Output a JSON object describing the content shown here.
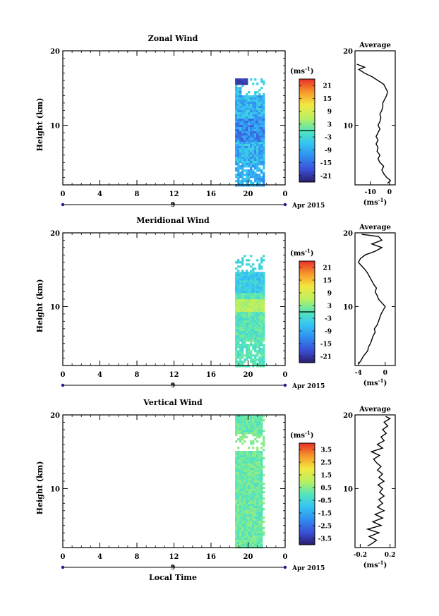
{
  "figure": {
    "x_axis_label": "Local Time",
    "colorbar_unit": "(ms",
    "colorbar_unit_exp": "-1",
    "colorbar_unit_close": ")"
  },
  "chart_data": [
    {
      "type": "heatmap",
      "title": "Zonal Wind",
      "ylabel": "Height (km)",
      "xlim": [
        0,
        24
      ],
      "ylim": [
        2,
        20
      ],
      "x_ticks": [
        "0",
        "4",
        "8",
        "12",
        "16",
        "20",
        "0"
      ],
      "y_ticks": [
        "10",
        "20"
      ],
      "date_axis": {
        "day": "9",
        "month_year": "Apr 2015"
      },
      "data_extent": {
        "x": [
          18.6,
          21.8
        ],
        "y": [
          2,
          16.3
        ]
      },
      "colorbar": {
        "ticks": [
          "21",
          "15",
          "9",
          "3",
          "-3",
          "-9",
          "-15",
          "-21"
        ],
        "range": [
          -24,
          24
        ]
      },
      "field_description_values": {
        "dominant": -8,
        "upper_patch": -22
      },
      "average_profile": {
        "title": "Average",
        "xlabel": "(ms",
        "xlabel_exp": "-1",
        "xlabel_close": ")",
        "xlim": [
          -18,
          3
        ],
        "x_ticks": [
          "-10",
          "0"
        ],
        "x_tick_values": [
          -10,
          0
        ],
        "ylim": [
          2,
          20
        ],
        "y_ticks": [
          "10",
          "20"
        ],
        "profile": [
          [
            2.2,
            -1
          ],
          [
            2.6,
            0.5
          ],
          [
            3,
            -1.5
          ],
          [
            3.5,
            -3
          ],
          [
            4,
            -4
          ],
          [
            4.5,
            -3
          ],
          [
            5,
            -5
          ],
          [
            5.5,
            -6
          ],
          [
            6,
            -5
          ],
          [
            6.5,
            -6.5
          ],
          [
            7,
            -6
          ],
          [
            7.5,
            -7
          ],
          [
            8,
            -6
          ],
          [
            8.5,
            -7
          ],
          [
            9,
            -6
          ],
          [
            9.5,
            -5
          ],
          [
            10,
            -6
          ],
          [
            10.5,
            -5
          ],
          [
            11,
            -4.5
          ],
          [
            11.5,
            -5
          ],
          [
            12,
            -4
          ],
          [
            12.5,
            -3.5
          ],
          [
            13,
            -3.5
          ],
          [
            13.5,
            -2.5
          ],
          [
            14,
            -1.5
          ],
          [
            14.5,
            -1
          ],
          [
            15,
            -2
          ],
          [
            15.5,
            -3
          ],
          [
            16,
            -6
          ],
          [
            16.5,
            -9
          ],
          [
            17,
            -13
          ],
          [
            17.5,
            -16
          ],
          [
            17.8,
            -13
          ],
          [
            18.2,
            -17
          ]
        ]
      }
    },
    {
      "type": "heatmap",
      "title": "Meridional Wind",
      "ylabel": "Height (km)",
      "xlim": [
        0,
        24
      ],
      "ylim": [
        2,
        20
      ],
      "x_ticks": [
        "0",
        "4",
        "8",
        "12",
        "16",
        "20",
        "0"
      ],
      "y_ticks": [
        "10",
        "20"
      ],
      "date_axis": {
        "day": "9",
        "month_year": "Apr 2015"
      },
      "data_extent": {
        "x": [
          18.6,
          21.8
        ],
        "y": [
          2,
          17.3
        ]
      },
      "colorbar": {
        "ticks": [
          "21",
          "15",
          "9",
          "3",
          "-3",
          "-9",
          "-15",
          "-21"
        ],
        "range": [
          -24,
          24
        ]
      },
      "field_description_values": {
        "dominant": 0,
        "upper_level": -5,
        "mid_level": 6
      },
      "average_profile": {
        "title": "Average",
        "xlabel": "(ms",
        "xlabel_exp": "-1",
        "xlabel_close": ")",
        "xlim": [
          -4.5,
          1.5
        ],
        "x_ticks": [
          "-4",
          "0"
        ],
        "x_tick_values": [
          -4,
          0
        ],
        "ylim": [
          2,
          20
        ],
        "y_ticks": [
          "10",
          "20"
        ],
        "profile": [
          [
            2.2,
            -4
          ],
          [
            2.7,
            -3.6
          ],
          [
            3.2,
            -3.3
          ],
          [
            4,
            -2.6
          ],
          [
            4.5,
            -2.5
          ],
          [
            5,
            -2.2
          ],
          [
            5.5,
            -2
          ],
          [
            6,
            -1.8
          ],
          [
            6.5,
            -1.5
          ],
          [
            7,
            -1.6
          ],
          [
            7.5,
            -1.2
          ],
          [
            8,
            -1
          ],
          [
            8.5,
            -0.8
          ],
          [
            9,
            -0.6
          ],
          [
            9.5,
            -0.3
          ],
          [
            10,
            0
          ],
          [
            10.5,
            -0.5
          ],
          [
            11,
            -1
          ],
          [
            11.5,
            -1.2
          ],
          [
            12,
            -1.5
          ],
          [
            12.5,
            -1.3
          ],
          [
            13,
            -1.7
          ],
          [
            13.5,
            -2
          ],
          [
            14,
            -2.3
          ],
          [
            14.5,
            -2.6
          ],
          [
            15,
            -3
          ],
          [
            15.5,
            -3.5
          ],
          [
            16,
            -4
          ],
          [
            16.5,
            -3.7
          ],
          [
            17,
            -3
          ],
          [
            17.5,
            -1.5
          ],
          [
            18,
            -0.5
          ],
          [
            18.5,
            -2
          ],
          [
            19,
            -0.5
          ],
          [
            19.5,
            -1
          ],
          [
            19.8,
            -3.5
          ]
        ]
      }
    },
    {
      "type": "heatmap",
      "title": "Vertical Wind",
      "ylabel": "Height (km)",
      "xlim": [
        0,
        24
      ],
      "ylim": [
        2,
        20
      ],
      "x_ticks": [
        "0",
        "4",
        "8",
        "12",
        "16",
        "20",
        "0"
      ],
      "y_ticks": [
        "10",
        "20"
      ],
      "date_axis": {
        "day": "9",
        "month_year": "Apr 2015"
      },
      "data_extent": {
        "x": [
          18.6,
          21.8
        ],
        "y": [
          2,
          20
        ]
      },
      "colorbar": {
        "ticks": [
          "3.5",
          "2.5",
          "1.5",
          "0.5",
          "-0.5",
          "-1.5",
          "-2.5",
          "-3.5"
        ],
        "range": [
          -4,
          4
        ]
      },
      "field_description_values": {
        "dominant": 0.2
      },
      "average_profile": {
        "title": "Average",
        "xlabel": "(ms",
        "xlabel_exp": "-1",
        "xlabel_close": ")",
        "xlim": [
          -0.27,
          0.27
        ],
        "x_ticks": [
          "-0.2",
          "0.2"
        ],
        "x_tick_values": [
          -0.2,
          0.2
        ],
        "ylim": [
          2,
          20
        ],
        "y_ticks": [
          "10",
          "20"
        ],
        "profile": [
          [
            2.2,
            -0.1
          ],
          [
            2.5,
            -0.05
          ],
          [
            3,
            0.02
          ],
          [
            3.5,
            -0.08
          ],
          [
            4,
            0.05
          ],
          [
            4.5,
            -0.1
          ],
          [
            5,
            0.08
          ],
          [
            5.5,
            -0.03
          ],
          [
            6,
            0.1
          ],
          [
            6.5,
            0.0
          ],
          [
            7,
            0.12
          ],
          [
            7.5,
            0.03
          ],
          [
            8,
            0.1
          ],
          [
            8.5,
            0.05
          ],
          [
            9,
            0.12
          ],
          [
            9.5,
            0.06
          ],
          [
            10,
            0.1
          ],
          [
            10.5,
            0.04
          ],
          [
            11,
            0.12
          ],
          [
            11.5,
            0.05
          ],
          [
            12,
            0.1
          ],
          [
            12.5,
            0.03
          ],
          [
            13,
            0.08
          ],
          [
            13.5,
            0.02
          ],
          [
            14,
            -0.02
          ],
          [
            14.5,
            0.06
          ],
          [
            15,
            -0.05
          ],
          [
            15.5,
            0.1
          ],
          [
            16,
            0.03
          ],
          [
            16.5,
            0.12
          ],
          [
            17,
            0.08
          ],
          [
            17.5,
            0.15
          ],
          [
            18,
            0.1
          ],
          [
            18.5,
            0.17
          ],
          [
            19,
            0.12
          ],
          [
            19.5,
            0.2
          ],
          [
            19.8,
            0.14
          ]
        ]
      }
    }
  ]
}
